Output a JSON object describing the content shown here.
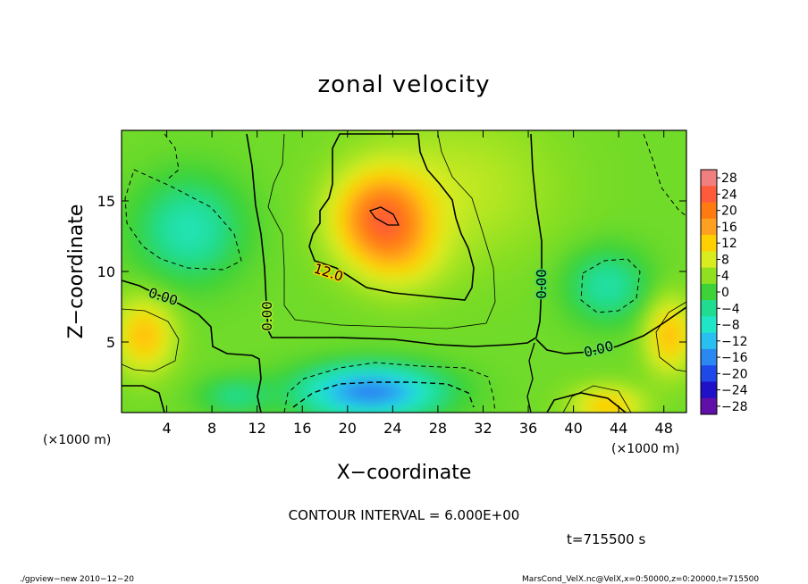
{
  "chart_data": {
    "type": "heatmap",
    "title": "zonal velocity",
    "xlabel": "X−coordinate",
    "ylabel": "Z−coordinate",
    "x_unit": "(×1000 m)",
    "y_unit": "(×1000 m)",
    "xlim": [
      0,
      50
    ],
    "ylim": [
      0,
      20
    ],
    "x_ticks": [
      4,
      8,
      12,
      16,
      20,
      24,
      28,
      32,
      36,
      40,
      44,
      48
    ],
    "y_ticks": [
      5,
      10,
      15
    ],
    "x_tick_labels": [
      "4",
      "8",
      "12",
      "16",
      "20",
      "24",
      "28",
      "32",
      "36",
      "40",
      "44",
      "48"
    ],
    "y_tick_labels": [
      "5",
      "10",
      "15"
    ],
    "colorbar": {
      "labels": [
        "28",
        "24",
        "20",
        "16",
        "12",
        "8",
        "4",
        "0",
        "−4",
        "−8",
        "−12",
        "−16",
        "−20",
        "−24",
        "−28"
      ],
      "values": [
        28,
        24,
        20,
        16,
        12,
        8,
        4,
        0,
        -4,
        -8,
        -12,
        -16,
        -20,
        -24,
        -28
      ],
      "colors": [
        "#f08080",
        "#ff5a3c",
        "#ff7a10",
        "#ffa020",
        "#ffd000",
        "#d8ec20",
        "#90e020",
        "#3cd238",
        "#20dc90",
        "#20e6c8",
        "#28c0f0",
        "#2a88f0",
        "#1e48e8",
        "#2010c8",
        "#6010a8"
      ]
    },
    "contour_labels": [
      {
        "text": "12.0",
        "x": 19.5,
        "z": 11.3
      },
      {
        "text": "0.00",
        "x": 3.6,
        "z": 8.3
      },
      {
        "text": "0.00",
        "x": 12.8,
        "z": 7.0
      },
      {
        "text": "0.00",
        "x": 37.2,
        "z": 8.3
      },
      {
        "text": "0.00",
        "x": 42.0,
        "z": 4.5
      }
    ],
    "features": [
      {
        "x": 23,
        "z": 13.8,
        "value": 18.5,
        "sx": 4.0,
        "sz": 3.2
      },
      {
        "x": 25,
        "z": 11.0,
        "value": 4.5,
        "sx": 3.8,
        "sz": 2.6
      },
      {
        "x": 6,
        "z": 13,
        "value": -9,
        "sx": 4.5,
        "sz": 3.5
      },
      {
        "x": 43,
        "z": 9,
        "value": -8,
        "sx": 3.5,
        "sz": 2.5
      },
      {
        "x": 22,
        "z": 1.5,
        "value": -19,
        "sx": 6,
        "sz": 1.8
      },
      {
        "x": 2,
        "z": 5.5,
        "value": 11,
        "sx": 2.5,
        "sz": 2.5
      },
      {
        "x": 48.5,
        "z": 5.5,
        "value": 11,
        "sx": 2.0,
        "sz": 2.5
      },
      {
        "x": 43,
        "z": 0.5,
        "value": 10,
        "sx": 3.0,
        "sz": 1.3
      },
      {
        "x": 30,
        "z": 16,
        "value": 4,
        "sx": 8,
        "sz": 5
      },
      {
        "x": 10,
        "z": 1.2,
        "value": -6,
        "sx": 3,
        "sz": 1.3
      }
    ],
    "annotations": {
      "contour_interval": "CONTOUR INTERVAL = 6.000E+00",
      "time": "t=715500 s",
      "footer_left": "./gpview−new  2010−12−20",
      "footer_right": "MarsCond_VelX.nc@VelX,x=0:50000,z=0:20000,t=715500"
    }
  }
}
